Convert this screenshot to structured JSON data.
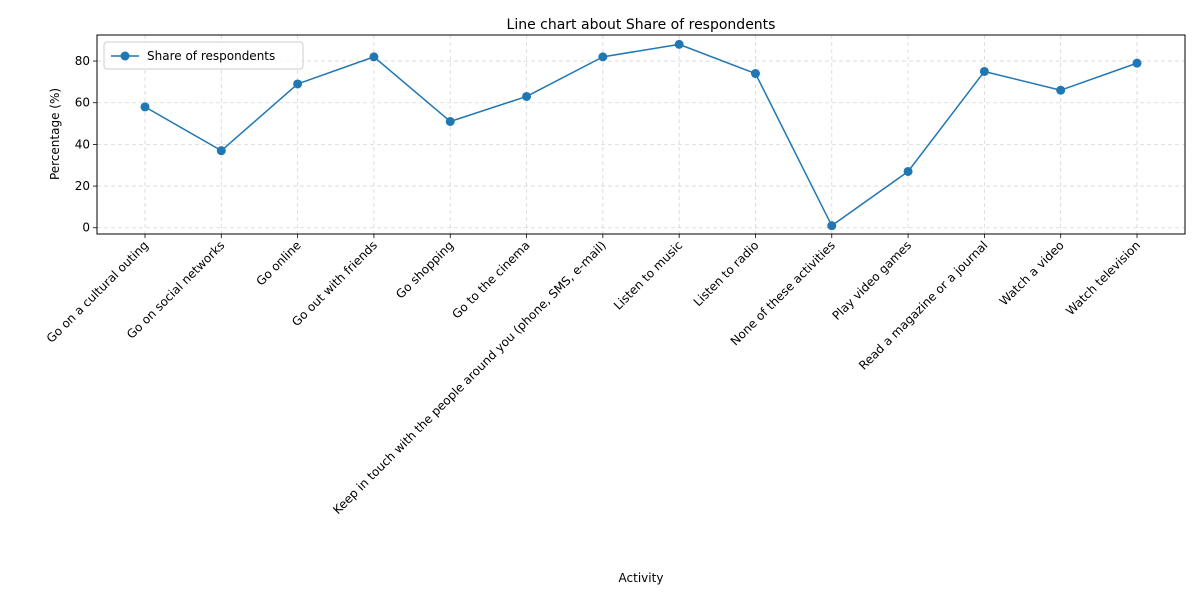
{
  "chart_data": {
    "type": "line",
    "title": "Line chart about Share of respondents",
    "xlabel": "Activity",
    "ylabel": "Percentage (%)",
    "categories": [
      "Go on a cultural outing",
      "Go on social networks",
      "Go online",
      "Go out with friends",
      "Go shopping",
      "Go to the cinema",
      "Keep in touch with the people around you (phone, SMS, e-mail)",
      "Listen to music",
      "Listen to radio",
      "None of these activities",
      "Play video games",
      "Read a magazine or a journal",
      "Watch a video",
      "Watch television"
    ],
    "series": [
      {
        "name": "Share of respondents",
        "values": [
          58,
          37,
          69,
          82,
          51,
          63,
          82,
          88,
          74,
          1,
          27,
          75,
          66,
          79
        ],
        "color": "#1f77b4",
        "marker": "circle"
      }
    ],
    "yticks": [
      0,
      20,
      40,
      60,
      80
    ],
    "ylim": [
      -3,
      92.5
    ],
    "grid": true,
    "legend_position": "upper-left"
  }
}
